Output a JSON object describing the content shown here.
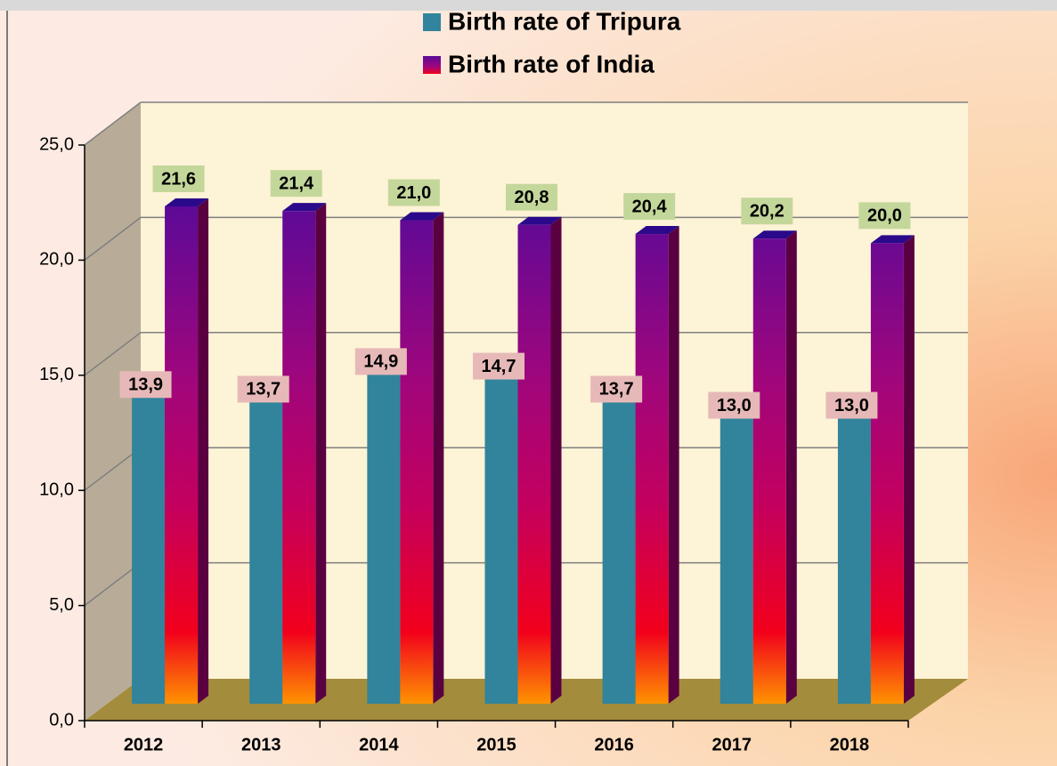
{
  "chart_data": {
    "type": "bar",
    "categories": [
      "2012",
      "2013",
      "2014",
      "2015",
      "2016",
      "2017",
      "2018"
    ],
    "series": [
      {
        "name": "Birth rate of Tripura",
        "color": "#31849b",
        "values": [
          13.9,
          13.7,
          14.9,
          14.7,
          13.7,
          13.0,
          13.0
        ],
        "value_labels": [
          "13,9",
          "13,7",
          "14,9",
          "14,7",
          "13,7",
          "13,0",
          "13,0"
        ]
      },
      {
        "name": "Birth rate of India",
        "color": "#6a0d91",
        "values": [
          21.6,
          21.4,
          21.0,
          20.8,
          20.4,
          20.2,
          20.0
        ],
        "value_labels": [
          "21,6",
          "21,4",
          "21,0",
          "20,8",
          "20,4",
          "20,2",
          "20,0"
        ]
      }
    ],
    "ylim": [
      0,
      25
    ],
    "yticks": [
      {
        "value": 0,
        "label": "0,0"
      },
      {
        "value": 5,
        "label": "5,0"
      },
      {
        "value": 10,
        "label": "10,0"
      },
      {
        "value": 15,
        "label": "15,0"
      },
      {
        "value": 20,
        "label": "20,0"
      },
      {
        "value": 25,
        "label": "25,0"
      }
    ],
    "grid": true
  }
}
